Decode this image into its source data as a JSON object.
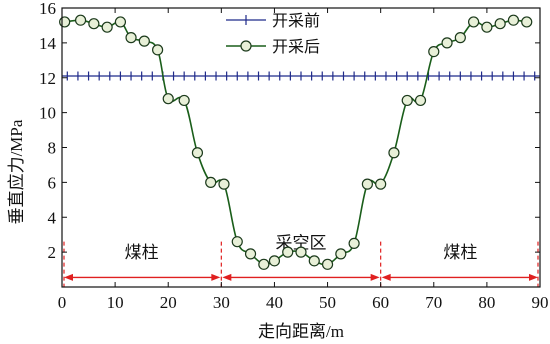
{
  "chart_data": {
    "type": "line",
    "xlabel": "走向距离/m",
    "ylabel": "垂直应力/MPa",
    "xlim": [
      0,
      90
    ],
    "ylim": [
      0,
      16
    ],
    "xticks": [
      0,
      10,
      20,
      30,
      40,
      50,
      60,
      70,
      80,
      90
    ],
    "yticks": [
      2,
      4,
      6,
      8,
      10,
      12,
      14,
      16
    ],
    "grid": false,
    "legend_position": "top-center",
    "series": [
      {
        "name": "开采前",
        "marker": "plus",
        "color": "#1f2a8a",
        "x": [
          1,
          3,
          5,
          7,
          9,
          11,
          13,
          15,
          17,
          19,
          21,
          23,
          25,
          27,
          29,
          31,
          33,
          35,
          37,
          39,
          41,
          43,
          45,
          47,
          49,
          51,
          53,
          55,
          57,
          59,
          61,
          63,
          65,
          67,
          69,
          71,
          73,
          75,
          77,
          79,
          81,
          83,
          85,
          87,
          89
        ],
        "values": [
          12.1,
          12.1,
          12.1,
          12.1,
          12.1,
          12.1,
          12.1,
          12.1,
          12.1,
          12.1,
          12.1,
          12.1,
          12.1,
          12.1,
          12.1,
          12.1,
          12.1,
          12.1,
          12.1,
          12.1,
          12.1,
          12.1,
          12.1,
          12.1,
          12.1,
          12.1,
          12.1,
          12.1,
          12.1,
          12.1,
          12.1,
          12.1,
          12.1,
          12.1,
          12.1,
          12.1,
          12.1,
          12.1,
          12.1,
          12.1,
          12.1,
          12.1,
          12.1,
          12.1,
          12.1
        ]
      },
      {
        "name": "开采后",
        "marker": "circle",
        "color": "#1a5e1a",
        "x": [
          0.5,
          3.5,
          6,
          8.5,
          11,
          13,
          15.5,
          18,
          20,
          23,
          25.5,
          28,
          30.5,
          33,
          35.5,
          38,
          40,
          42.5,
          45,
          47.5,
          50,
          52.5,
          55,
          57.5,
          60,
          62.5,
          65,
          67.5,
          70,
          72.5,
          75,
          77.5,
          80,
          82.5,
          85,
          87.5
        ],
        "values": [
          15.2,
          15.3,
          15.1,
          14.9,
          15.2,
          14.3,
          14.1,
          13.6,
          10.8,
          10.7,
          7.7,
          6.0,
          5.9,
          2.6,
          1.9,
          1.3,
          1.5,
          2.0,
          2.0,
          1.5,
          1.3,
          1.9,
          2.5,
          5.9,
          5.9,
          7.7,
          10.7,
          10.7,
          13.5,
          14.0,
          14.3,
          15.2,
          14.9,
          15.1,
          15.3,
          15.2
        ]
      }
    ],
    "annotations": [
      {
        "label": "煤柱",
        "x_from": 0,
        "x_to": 30
      },
      {
        "label": "采空区",
        "x_from": 30,
        "x_to": 60
      },
      {
        "label": "煤柱",
        "x_from": 60,
        "x_to": 90
      }
    ],
    "annotation_color": "#e02020"
  }
}
